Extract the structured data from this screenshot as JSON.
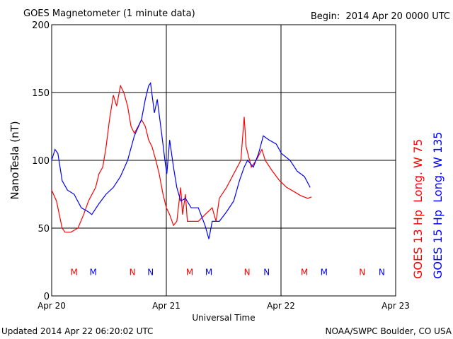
{
  "chart_data": {
    "type": "line",
    "title": "GOES Magnetometer (1 minute data)",
    "subtitle": "Begin:  2014 Apr 20 0000 UTC",
    "y_label": "NanoTesla (nT)",
    "x_label": "Universal Time",
    "footer_left": "Updated 2014 Apr 22 06:20:02 UTC",
    "footer_right": "NOAA/SWPC Boulder, CO USA",
    "xlim": [
      0,
      72
    ],
    "xticks": [
      {
        "value": 0,
        "label": "Apr 20"
      },
      {
        "value": 24,
        "label": "Apr 21"
      },
      {
        "value": 48,
        "label": "Apr 22"
      },
      {
        "value": 72,
        "label": "Apr 23"
      }
    ],
    "ylim": [
      0,
      200
    ],
    "yticks": [
      0,
      50,
      100,
      150,
      200
    ],
    "grid": true,
    "series": [
      {
        "name": "GOES 13 Hp  Long. W 75",
        "color": "#ff0000",
        "x": [
          0,
          1.0,
          2.2,
          2.8,
          4.0,
          5.5,
          6.7,
          7.7,
          9.2,
          9.9,
          10.7,
          11.4,
          12.1,
          12.9,
          13.6,
          14.4,
          15.1,
          15.9,
          16.6,
          17.3,
          18.1,
          18.8,
          19.6,
          20.3,
          21.0,
          21.8,
          22.5,
          23.3,
          24.0,
          24.7,
          25.5,
          26.2,
          27.0,
          27.4,
          28.0,
          28.4,
          29.2,
          30.7,
          32.1,
          33.6,
          34.4,
          35.1,
          36.6,
          38.1,
          39.6,
          40.3,
          40.7,
          41.8,
          42.8,
          44.0,
          44.7,
          46.2,
          47.7,
          49.2,
          50.7,
          52.1,
          53.6,
          54.4
        ],
        "values": [
          78,
          70,
          50,
          47,
          47,
          50,
          60,
          70,
          80,
          90,
          95,
          110,
          130,
          148,
          140,
          155,
          150,
          140,
          125,
          120,
          125,
          130,
          125,
          115,
          110,
          100,
          90,
          75,
          65,
          60,
          52,
          55,
          80,
          60,
          75,
          55,
          55,
          55,
          60,
          65,
          55,
          72,
          80,
          90,
          100,
          132,
          110,
          95,
          100,
          108,
          100,
          92,
          85,
          80,
          77,
          74,
          72,
          73
        ]
      },
      {
        "name": "GOES 15 Hp  Long. W 135",
        "color": "#0000ff",
        "x": [
          0,
          0.7,
          1.3,
          2.2,
          3.3,
          4.7,
          6.2,
          7.7,
          8.4,
          9.9,
          11.4,
          12.9,
          14.4,
          15.9,
          17.3,
          18.8,
          19.6,
          20.3,
          20.7,
          21.5,
          22.1,
          23.0,
          23.7,
          24.1,
          24.7,
          25.5,
          26.2,
          27.0,
          28.0,
          29.2,
          30.7,
          32.1,
          32.9,
          33.6,
          35.1,
          36.6,
          38.1,
          39.3,
          40.3,
          41.0,
          42.2,
          43.3,
          44.3,
          45.5,
          47.0,
          48.1,
          49.9,
          51.4,
          52.9,
          54.1
        ],
        "values": [
          100,
          108,
          105,
          85,
          78,
          75,
          65,
          62,
          60,
          68,
          75,
          80,
          88,
          100,
          118,
          130,
          145,
          155,
          157,
          135,
          145,
          120,
          100,
          90,
          115,
          95,
          80,
          70,
          72,
          65,
          65,
          52,
          42,
          55,
          55,
          62,
          70,
          85,
          95,
          100,
          95,
          105,
          118,
          115,
          112,
          105,
          100,
          92,
          88,
          80
        ]
      }
    ],
    "annotations": [
      {
        "text": "M",
        "x": 4.7,
        "y": 18,
        "color": "#ff0000"
      },
      {
        "text": "M",
        "x": 8.7,
        "y": 18,
        "color": "#0000ff"
      },
      {
        "text": "N",
        "x": 16.9,
        "y": 18,
        "color": "#ff0000"
      },
      {
        "text": "N",
        "x": 20.7,
        "y": 18,
        "color": "#0000ff"
      },
      {
        "text": "M",
        "x": 28.9,
        "y": 18,
        "color": "#ff0000"
      },
      {
        "text": "M",
        "x": 32.9,
        "y": 18,
        "color": "#0000ff"
      },
      {
        "text": "N",
        "x": 40.9,
        "y": 18,
        "color": "#ff0000"
      },
      {
        "text": "N",
        "x": 45.0,
        "y": 18,
        "color": "#0000ff"
      },
      {
        "text": "M",
        "x": 52.9,
        "y": 18,
        "color": "#ff0000"
      },
      {
        "text": "M",
        "x": 57.0,
        "y": 18,
        "color": "#0000ff"
      },
      {
        "text": "N",
        "x": 65.0,
        "y": 18,
        "color": "#ff0000"
      },
      {
        "text": "N",
        "x": 69.1,
        "y": 18,
        "color": "#0000ff"
      }
    ]
  }
}
